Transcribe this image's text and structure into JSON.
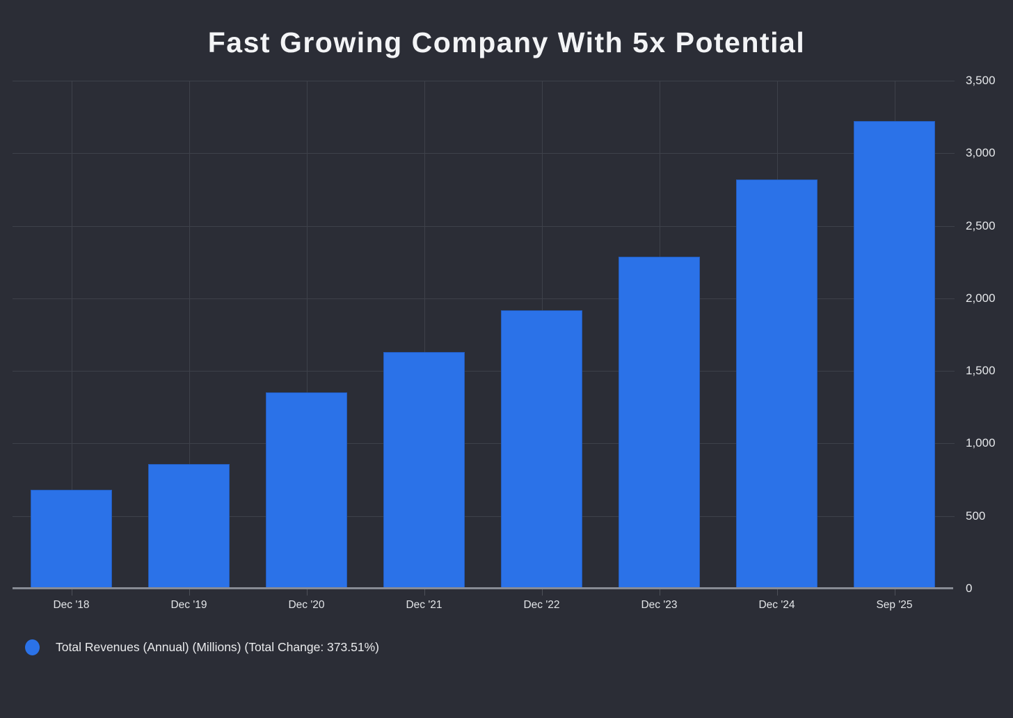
{
  "title": "Fast Growing Company With 5x Potential",
  "legend": {
    "label": "Total Revenues (Annual) (Millions) (Total Change: 373.51%)",
    "marker": "circle-icon",
    "marker_color": "#2b72e8"
  },
  "colors": {
    "background": "#2b2d36",
    "bar": "#2b72e8",
    "gridline": "#3e414a",
    "axis_line": "#878b94",
    "title_text": "#f3f4f6",
    "axis_text": "#e3e5e8"
  },
  "chart_data": {
    "type": "bar",
    "title": "Fast Growing Company With 5x Potential",
    "categories": [
      "Dec '18",
      "Dec '19",
      "Dec '20",
      "Dec '21",
      "Dec '22",
      "Dec '23",
      "Dec '24",
      "Sep '25"
    ],
    "series": [
      {
        "name": "Total Revenues (Annual) (Millions)",
        "values": [
          680,
          860,
          1350,
          1630,
          1920,
          2285,
          2820,
          3220
        ]
      }
    ],
    "total_change": "373.51%",
    "xlabel": "",
    "ylabel": "",
    "ylim": [
      0,
      3500
    ],
    "yticks": [
      0,
      500,
      1000,
      1500,
      2000,
      2500,
      3000,
      3500
    ],
    "ytick_side": "right",
    "grid": true,
    "legend_position": "bottom-left"
  }
}
